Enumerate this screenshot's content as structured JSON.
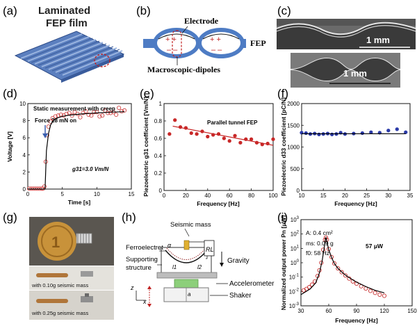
{
  "panels": {
    "a": {
      "letter": "(a)",
      "title_line1": "Laminated",
      "title_line2": "FEP film"
    },
    "b": {
      "letter": "(b)",
      "electrode_label": "Electrode",
      "fep_label": "FEP",
      "dipoles_label": "Macroscopic-dipoles"
    },
    "c": {
      "letter": "(c)",
      "scale_top": "1 mm",
      "scale_bottom": "1 mm"
    },
    "d": {
      "letter": "(d)",
      "annotation_title": "Static measurement with creep",
      "force_label": "Force 28 mN on",
      "g31_label": "g31=3.0 Vm/N",
      "ylabel": "Voltage [V]",
      "xlabel": "Time [s]"
    },
    "e": {
      "letter": "(e)",
      "legend": "Parallel tunnel FEP",
      "ylabel": "Piezoelectric g31 coefficient [Vm/N]",
      "xlabel": "Frequency [Hz]"
    },
    "f": {
      "letter": "(f)",
      "ylabel": "Piezoelectric d33 coefficient [pC/N]",
      "xlabel": "Frequency [Hz]"
    },
    "g": {
      "letter": "(g)",
      "caption1": "with 0.10g seismic mass",
      "caption2": "with 0.25g seismic mass"
    },
    "h": {
      "letter": "(h)",
      "seismic_mass": "Seismic mass",
      "ferroelectret": "Ferroelectret",
      "supporting_line1": "Supporting",
      "supporting_line2": "structure",
      "gravity": "Gravity",
      "accelerometer": "Accelerometer",
      "shaker": "Shaker",
      "alpha": "α",
      "rl": "RL",
      "l1": "l1",
      "l2": "l2",
      "a_label": "a",
      "z_label": "z",
      "x_label": "x"
    },
    "i": {
      "letter": "(i)",
      "param_A": "A: 0.4 cm²",
      "param_ms": "ms: 0.09 g",
      "param_f0": "f0: 58 Hz",
      "peak_label": "57 μW",
      "ylabel": "Normalized output power Pn [μW]",
      "xlabel": "Frequency [Hz]"
    }
  },
  "chart_data": [
    {
      "id": "d",
      "type": "scatter",
      "xlabel": "Time [s]",
      "ylabel": "Voltage [V]",
      "xlim": [
        0,
        15
      ],
      "ylim": [
        0,
        10
      ],
      "xticks": [
        0,
        5,
        10,
        15
      ],
      "yticks": [
        0,
        2,
        4,
        6,
        8,
        10
      ],
      "series": [
        {
          "name": "measured",
          "marker": "open-circle",
          "color": "#d04848",
          "x": [
            0.2,
            0.5,
            0.8,
            1.1,
            1.4,
            1.7,
            2.0,
            2.2,
            2.4,
            2.6,
            2.8,
            3.0,
            3.3,
            3.6,
            4.0,
            4.4,
            4.8,
            5.2,
            5.6,
            6.0,
            6.4,
            6.8,
            7.2,
            7.6,
            8.0,
            8.4,
            8.8,
            9.2,
            9.6,
            10.0,
            10.4,
            10.8,
            11.2,
            11.6,
            12.0,
            12.4,
            12.8,
            13.2,
            13.6,
            14.0
          ],
          "y": [
            0.05,
            0.05,
            0.05,
            0.05,
            0.05,
            0.05,
            0.05,
            0.05,
            0.3,
            3.2,
            6.3,
            7.3,
            7.9,
            8.3,
            8.5,
            8.6,
            8.7,
            8.6,
            8.8,
            8.9,
            8.6,
            9.0,
            8.8,
            8.4,
            8.9,
            9.1,
            8.7,
            8.6,
            9.0,
            9.0,
            8.5,
            8.6,
            9.2,
            8.9,
            8.9,
            9.0,
            8.7,
            9.5,
            9.1,
            9.2
          ]
        },
        {
          "name": "fit",
          "line": true,
          "color": "#000000",
          "x": [
            0,
            2.5,
            2.7,
            3.0,
            3.3,
            3.7,
            4.2,
            5,
            6,
            8,
            10,
            12,
            14
          ],
          "y": [
            0,
            0,
            4.5,
            6.5,
            7.5,
            8.0,
            8.3,
            8.5,
            8.65,
            8.8,
            8.9,
            9.0,
            9.05
          ]
        }
      ],
      "annotations": [
        "Static measurement with creep",
        "Force 28 mN on",
        "g31=3.0 Vm/N"
      ]
    },
    {
      "id": "e",
      "type": "scatter",
      "xlabel": "Frequency [Hz]",
      "ylabel": "Piezoelectric g31 coefficient [Vm/N]",
      "xlim": [
        0,
        100
      ],
      "ylim": [
        0,
        1.0
      ],
      "xticks": [
        0,
        20,
        40,
        60,
        80,
        100
      ],
      "yticks": [
        0,
        0.2,
        0.4,
        0.6,
        0.8,
        1.0
      ],
      "series": [
        {
          "name": "Parallel tunnel FEP",
          "marker": "filled-circle",
          "color": "#c82828",
          "x": [
            5,
            10,
            15,
            20,
            25,
            30,
            35,
            40,
            45,
            50,
            55,
            60,
            65,
            70,
            75,
            80,
            85,
            90,
            95,
            100
          ],
          "y": [
            0.65,
            0.81,
            0.73,
            0.72,
            0.66,
            0.65,
            0.68,
            0.62,
            0.64,
            0.65,
            0.6,
            0.57,
            0.63,
            0.55,
            0.59,
            0.59,
            0.55,
            0.53,
            0.54,
            0.59
          ]
        },
        {
          "name": "trend",
          "line": true,
          "color": "#c82828",
          "x": [
            8,
            100
          ],
          "y": [
            0.74,
            0.52
          ]
        }
      ]
    },
    {
      "id": "f",
      "type": "scatter",
      "xlabel": "Frequency [Hz]",
      "ylabel": "Piezoelectric d33 coefficient [pC/N]",
      "xlim": [
        10,
        35
      ],
      "ylim": [
        0,
        2000
      ],
      "xticks": [
        10,
        15,
        20,
        25,
        30,
        35
      ],
      "yticks": [
        0,
        500,
        1000,
        1500,
        2000
      ],
      "series": [
        {
          "name": "measured",
          "marker": "filled-circle",
          "color": "#2b3aa8",
          "x": [
            10,
            11,
            12,
            13,
            14,
            15,
            16,
            17,
            18,
            19,
            20,
            22,
            24,
            26,
            28,
            30,
            32,
            34
          ],
          "y": [
            1330,
            1320,
            1300,
            1310,
            1290,
            1300,
            1310,
            1290,
            1300,
            1330,
            1300,
            1310,
            1320,
            1340,
            1330,
            1380,
            1410,
            1340
          ]
        },
        {
          "name": "fit",
          "line": true,
          "color": "#000000",
          "x": [
            10,
            34
          ],
          "y": [
            1305,
            1305
          ]
        }
      ]
    },
    {
      "id": "i",
      "type": "scatter",
      "xlabel": "Frequency [Hz]",
      "ylabel": "Normalized output power Pn [μW]",
      "xlim": [
        30,
        150
      ],
      "ylim": [
        0.001,
        1000
      ],
      "yscale": "log",
      "xticks": [
        30,
        60,
        90,
        120,
        150
      ],
      "yticks": [
        0.001,
        0.01,
        0.1,
        1,
        10,
        100,
        1000
      ],
      "series": [
        {
          "name": "measured",
          "marker": "open-circle",
          "color": "#c83030",
          "x": [
            33,
            36,
            39,
            42,
            45,
            48,
            50,
            52,
            54,
            56,
            57,
            58,
            60,
            63,
            66,
            70,
            74,
            78,
            82,
            86,
            90,
            95,
            100,
            105,
            110,
            115,
            120
          ],
          "y": [
            0.012,
            0.015,
            0.02,
            0.03,
            0.05,
            0.12,
            0.3,
            1.0,
            8,
            40,
            57,
            40,
            9,
            2.5,
            0.9,
            0.4,
            0.22,
            0.13,
            0.08,
            0.05,
            0.035,
            0.023,
            0.016,
            0.011,
            0.008,
            0.006,
            0.005
          ]
        },
        {
          "name": "fit",
          "line": true,
          "color": "#000000",
          "x": [
            30,
            40,
            46,
            50,
            53,
            55,
            56.5,
            57,
            58,
            60,
            63,
            66,
            70,
            75,
            80,
            90,
            100,
            110,
            120
          ],
          "y": [
            0.006,
            0.015,
            0.04,
            0.2,
            1.5,
            10,
            50,
            57,
            30,
            8,
            2.4,
            0.9,
            0.4,
            0.2,
            0.11,
            0.045,
            0.022,
            0.012,
            0.008
          ]
        }
      ],
      "annotations": [
        "A: 0.4 cm²",
        "ms: 0.09 g",
        "f0: 58 Hz",
        "57 μW"
      ]
    }
  ]
}
